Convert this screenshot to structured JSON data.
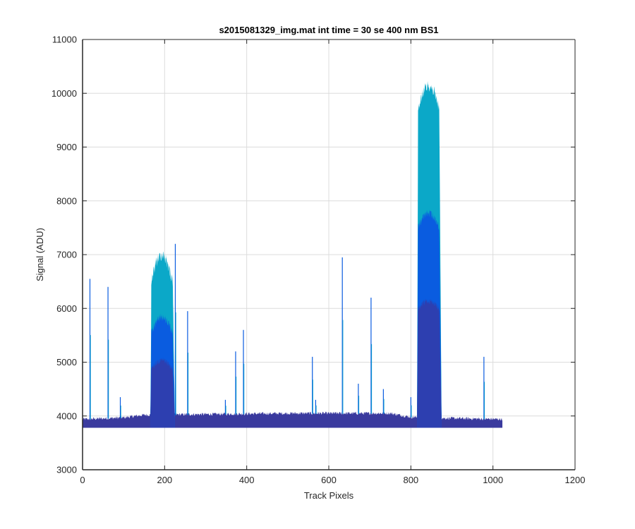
{
  "chart_data": {
    "type": "area",
    "title": "s2015081329_img.mat int time = 30 se  400 nm BS1",
    "xlabel": "Track Pixels",
    "ylabel": "Signal (ADU)",
    "xlim": [
      0,
      1200
    ],
    "ylim": [
      3000,
      11000
    ],
    "xticks": [
      0,
      200,
      400,
      600,
      800,
      1000,
      1200
    ],
    "yticks": [
      3000,
      4000,
      5000,
      6000,
      7000,
      8000,
      9000,
      10000,
      11000
    ],
    "grid": true,
    "colors": {
      "baseline": "#3a3a9e",
      "low": "#2d3fb0",
      "mid": "#0a5ce0",
      "high": "#0ba8c8"
    },
    "pixel_range": [
      0,
      1023
    ],
    "baseline_segments": [
      {
        "x": [
          0,
          1
        ],
        "y": [
          3850,
          3850
        ]
      },
      {
        "x": [
          0,
          100,
          150,
          500,
          750,
          800,
          880,
          1023
        ],
        "y": [
          3850,
          3880,
          3930,
          3960,
          3960,
          3890,
          3870,
          3850
        ]
      }
    ],
    "bands": [
      {
        "name": "band-1",
        "x_start": 165,
        "x_end": 225,
        "peak": 7100,
        "rise_to": 5900
      },
      {
        "name": "band-2",
        "x_start": 815,
        "x_end": 875,
        "peak": 10250,
        "rise_to": 9200
      }
    ],
    "spikes": [
      {
        "x": 18,
        "y": 6550
      },
      {
        "x": 62,
        "y": 6400
      },
      {
        "x": 92,
        "y": 4350
      },
      {
        "x": 226,
        "y": 7200
      },
      {
        "x": 256,
        "y": 5950
      },
      {
        "x": 348,
        "y": 4300
      },
      {
        "x": 373,
        "y": 5200
      },
      {
        "x": 392,
        "y": 5600
      },
      {
        "x": 560,
        "y": 5100
      },
      {
        "x": 568,
        "y": 4300
      },
      {
        "x": 633,
        "y": 6950
      },
      {
        "x": 672,
        "y": 4600
      },
      {
        "x": 703,
        "y": 6200
      },
      {
        "x": 733,
        "y": 4500
      },
      {
        "x": 800,
        "y": 4350
      },
      {
        "x": 978,
        "y": 5100
      }
    ]
  }
}
